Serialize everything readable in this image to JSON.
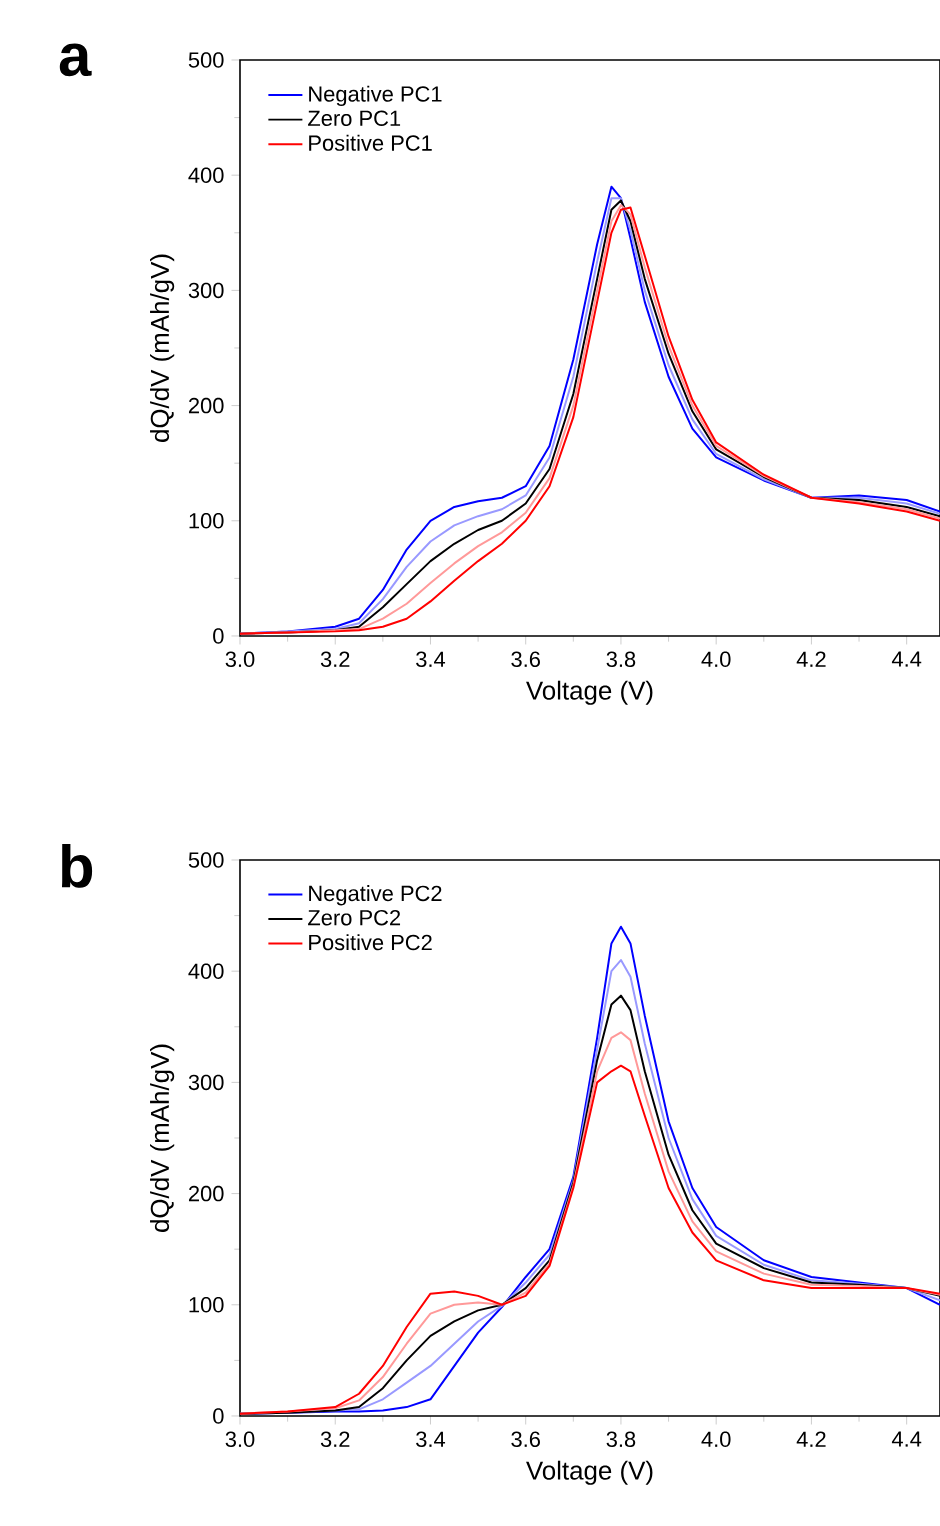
{
  "chart_data": [
    {
      "type": "line",
      "title": "a",
      "xlabel": "Voltage (V)",
      "ylabel": "dQ/dV (mAh/gV)",
      "xlim": [
        3.0,
        4.47
      ],
      "ylim": [
        0,
        500
      ],
      "xticks": [
        {
          "value": 3.0,
          "label": "3.0"
        },
        {
          "value": 3.2,
          "label": "3.2"
        },
        {
          "value": 3.4,
          "label": "3.4"
        },
        {
          "value": 3.6,
          "label": "3.6"
        },
        {
          "value": 3.8,
          "label": "3.8"
        },
        {
          "value": 4.0,
          "label": "4.0"
        },
        {
          "value": 4.2,
          "label": "4.2"
        },
        {
          "value": 4.4,
          "label": "4.4"
        }
      ],
      "yticks": [
        0,
        100,
        200,
        300,
        400,
        500
      ],
      "legend": "top left",
      "marker": "none",
      "x": [
        3.0,
        3.1,
        3.2,
        3.25,
        3.3,
        3.35,
        3.4,
        3.45,
        3.5,
        3.55,
        3.6,
        3.65,
        3.7,
        3.75,
        3.78,
        3.8,
        3.82,
        3.85,
        3.9,
        3.95,
        4.0,
        4.1,
        4.2,
        4.3,
        4.4,
        4.47
      ],
      "series": [
        {
          "name": "Negative PC1",
          "color": "#0000ff",
          "values": [
            2,
            4,
            8,
            15,
            40,
            75,
            100,
            112,
            117,
            120,
            130,
            165,
            240,
            340,
            390,
            380,
            345,
            290,
            225,
            180,
            155,
            135,
            120,
            122,
            118,
            108
          ]
        },
        {
          "color": "#9999ff",
          "values": [
            2,
            4,
            6,
            11,
            32,
            60,
            82,
            96,
            104,
            110,
            122,
            155,
            225,
            325,
            380,
            380,
            352,
            300,
            235,
            188,
            158,
            136,
            120,
            120,
            115,
            106
          ]
        },
        {
          "name": "Zero PC1",
          "color": "#000000",
          "values": [
            2,
            3,
            5,
            8,
            25,
            45,
            65,
            80,
            92,
            100,
            115,
            145,
            210,
            310,
            370,
            378,
            360,
            310,
            245,
            195,
            162,
            138,
            120,
            118,
            112,
            104
          ]
        },
        {
          "color": "#ff9999",
          "values": [
            2,
            3,
            5,
            6,
            15,
            28,
            46,
            63,
            78,
            90,
            107,
            137,
            200,
            300,
            360,
            374,
            366,
            320,
            252,
            200,
            165,
            139,
            120,
            116,
            110,
            102
          ]
        },
        {
          "name": "Positive PC1",
          "color": "#ff0000",
          "values": [
            2,
            3,
            4,
            5,
            8,
            15,
            30,
            48,
            65,
            80,
            100,
            130,
            190,
            290,
            350,
            370,
            372,
            330,
            260,
            205,
            168,
            140,
            120,
            115,
            108,
            100
          ]
        }
      ]
    },
    {
      "type": "line",
      "title": "b",
      "xlabel": "Voltage (V)",
      "ylabel": "dQ/dV (mAh/gV)",
      "xlim": [
        3.0,
        4.47
      ],
      "ylim": [
        0,
        500
      ],
      "xticks": [
        {
          "value": 3.0,
          "label": "3.0"
        },
        {
          "value": 3.2,
          "label": "3.2"
        },
        {
          "value": 3.4,
          "label": "3.4"
        },
        {
          "value": 3.6,
          "label": "3.6"
        },
        {
          "value": 3.8,
          "label": "3.8"
        },
        {
          "value": 4.0,
          "label": "4.0"
        },
        {
          "value": 4.2,
          "label": "4.2"
        },
        {
          "value": 4.4,
          "label": "4.4"
        }
      ],
      "yticks": [
        0,
        100,
        200,
        300,
        400,
        500
      ],
      "legend": "top left",
      "marker": "none",
      "x": [
        3.0,
        3.1,
        3.2,
        3.25,
        3.3,
        3.35,
        3.4,
        3.45,
        3.5,
        3.55,
        3.6,
        3.65,
        3.7,
        3.75,
        3.78,
        3.8,
        3.82,
        3.85,
        3.9,
        3.95,
        4.0,
        4.1,
        4.2,
        4.3,
        4.4,
        4.47
      ],
      "series": [
        {
          "name": "Negative PC2",
          "color": "#0000ff",
          "values": [
            2,
            3,
            4,
            4,
            5,
            8,
            15,
            45,
            75,
            98,
            125,
            150,
            215,
            340,
            425,
            440,
            425,
            360,
            265,
            205,
            170,
            140,
            125,
            120,
            115,
            100
          ]
        },
        {
          "color": "#9999ff",
          "values": [
            2,
            3,
            5,
            6,
            15,
            30,
            45,
            65,
            85,
            99,
            120,
            145,
            212,
            330,
            400,
            410,
            395,
            335,
            250,
            195,
            162,
            136,
            122,
            119,
            115,
            104
          ]
        },
        {
          "name": "Zero PC2",
          "color": "#000000",
          "values": [
            2,
            3,
            5,
            8,
            25,
            50,
            72,
            85,
            95,
            100,
            115,
            140,
            210,
            320,
            370,
            378,
            365,
            310,
            235,
            185,
            155,
            133,
            120,
            118,
            115,
            108
          ]
        },
        {
          "color": "#ff9999",
          "values": [
            2,
            4,
            7,
            14,
            35,
            65,
            92,
            100,
            102,
            100,
            111,
            137,
            207,
            310,
            340,
            345,
            338,
            290,
            220,
            175,
            148,
            128,
            118,
            117,
            115,
            109
          ]
        },
        {
          "name": "Positive PC2",
          "color": "#ff0000",
          "values": [
            2,
            4,
            8,
            20,
            45,
            80,
            110,
            112,
            108,
            100,
            108,
            135,
            205,
            300,
            310,
            315,
            310,
            270,
            205,
            165,
            140,
            122,
            115,
            115,
            115,
            110
          ]
        }
      ]
    }
  ]
}
